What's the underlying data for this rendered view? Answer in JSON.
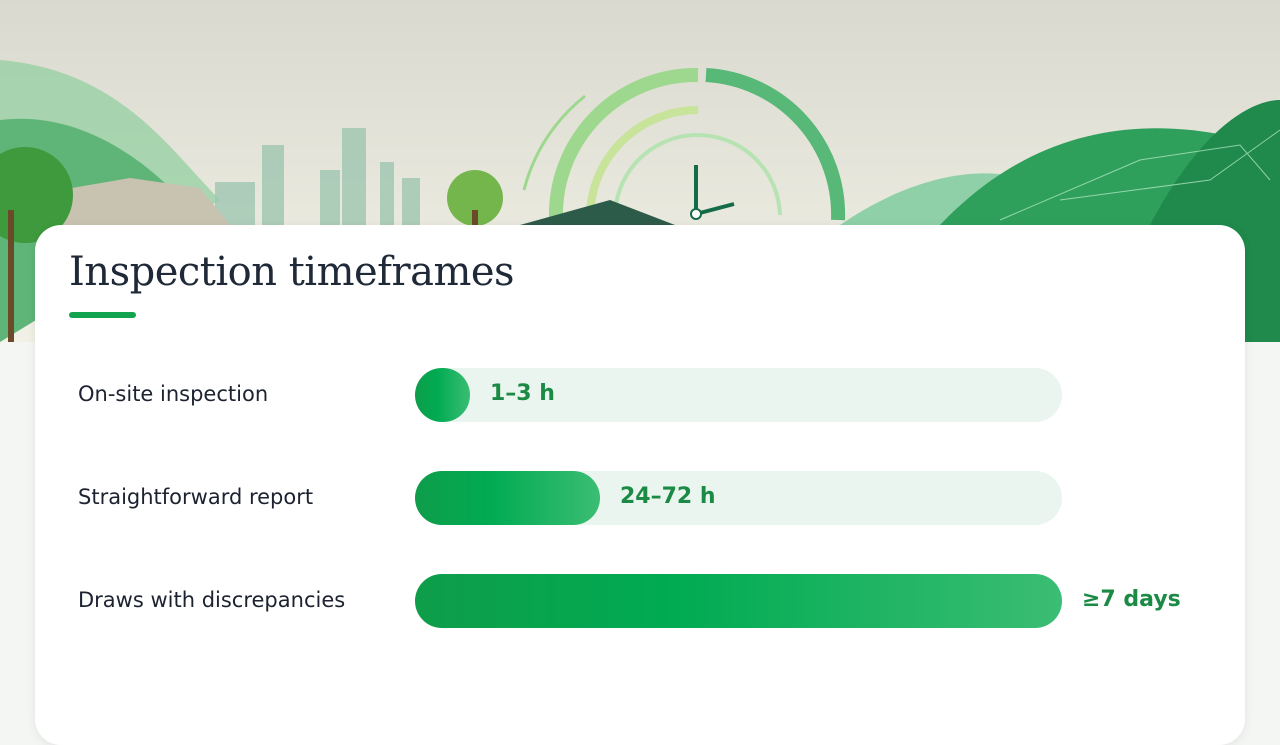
{
  "title": "Inspection timeframes",
  "rows": [
    {
      "label": "On-site inspection",
      "value": "1–3 h"
    },
    {
      "label": "Straightforward report",
      "value": "24–72 h"
    },
    {
      "label": "Draws with discrepancies",
      "value": "≥7 days"
    }
  ]
}
